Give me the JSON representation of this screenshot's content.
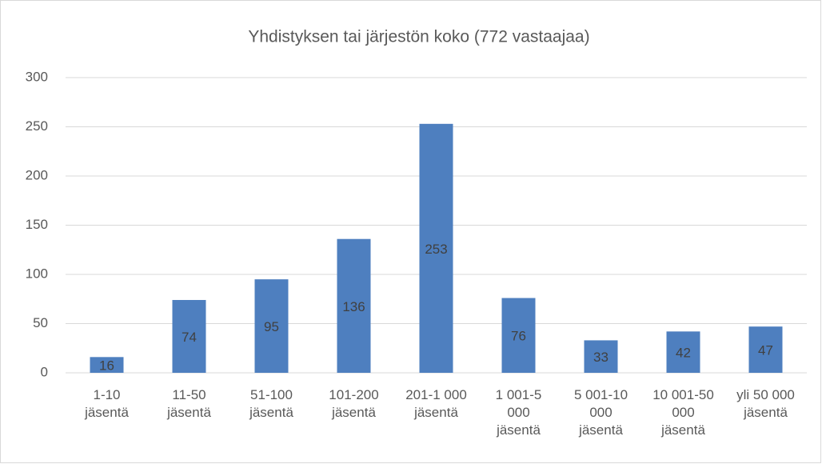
{
  "chart_data": {
    "type": "bar",
    "title": "Yhdistyksen tai järjestön koko (772 vastaajaa)",
    "categories": [
      "1-10 jäsentä",
      "11-50 jäsentä",
      "51-100 jäsentä",
      "101-200 jäsentä",
      "201-1 000 jäsentä",
      "1 001-5 000 jäsentä",
      "5 001-10 000 jäsentä",
      "10 001-50 000 jäsentä",
      "yli 50 000 jäsentä"
    ],
    "values": [
      16,
      74,
      95,
      136,
      253,
      76,
      33,
      42,
      47
    ],
    "color": "#4e7fbf",
    "ylim": [
      0,
      300
    ],
    "yticks": [
      0,
      50,
      100,
      150,
      200,
      250,
      300
    ],
    "grid": true
  }
}
